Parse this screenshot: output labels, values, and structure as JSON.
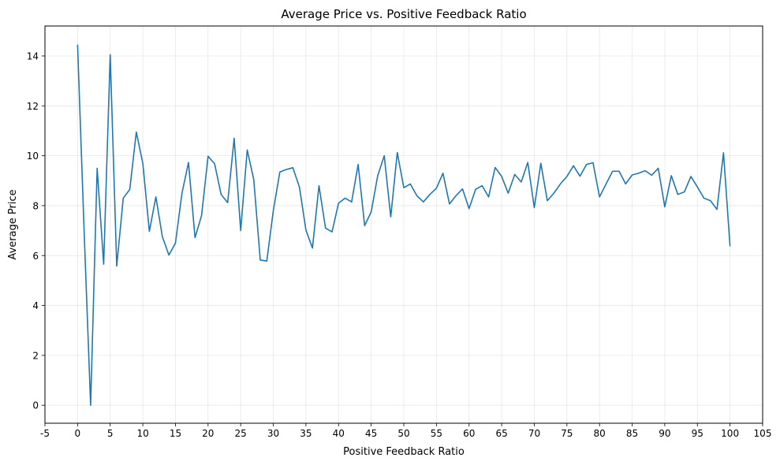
{
  "chart_data": {
    "type": "line",
    "title": "Average Price vs. Positive Feedback Ratio",
    "xlabel": "Positive Feedback Ratio",
    "ylabel": "Average Price",
    "xlim": [
      -5,
      105
    ],
    "ylim": [
      -0.72,
      15.2
    ],
    "x_ticks": [
      -5,
      0,
      5,
      10,
      15,
      20,
      25,
      30,
      35,
      40,
      45,
      50,
      55,
      60,
      65,
      70,
      75,
      80,
      85,
      90,
      95,
      100,
      105
    ],
    "y_ticks": [
      0,
      2,
      4,
      6,
      8,
      10,
      12,
      14
    ],
    "grid": true,
    "line_color": "#1f77b4",
    "series": [
      {
        "x": [
          0,
          1,
          2,
          3,
          4,
          5,
          6,
          7,
          8,
          9,
          10,
          11,
          12,
          13,
          14,
          15,
          16,
          17,
          18,
          19,
          20,
          21,
          22,
          23,
          24,
          25,
          26,
          27,
          28,
          29,
          30,
          31,
          32,
          33,
          34,
          35,
          36,
          37,
          38,
          39,
          40,
          41,
          42,
          43,
          44,
          45,
          46,
          47,
          48,
          49,
          50,
          51,
          52,
          53,
          54,
          55,
          56,
          57,
          58,
          59,
          60,
          61,
          62,
          63,
          64,
          65,
          66,
          67,
          68,
          69,
          70,
          71,
          72,
          73,
          74,
          75,
          76,
          77,
          78,
          79,
          80,
          81,
          82,
          83,
          84,
          85,
          86,
          87,
          88,
          89,
          90,
          91,
          92,
          93,
          94,
          95,
          96,
          97,
          98,
          99,
          100
        ],
        "values": [
          14.45,
          7.0,
          0.0,
          9.5,
          5.65,
          14.05,
          5.58,
          8.3,
          8.65,
          10.95,
          9.7,
          6.97,
          8.35,
          6.75,
          6.02,
          6.5,
          8.5,
          9.73,
          6.72,
          7.6,
          9.98,
          9.68,
          8.45,
          8.12,
          10.7,
          7.0,
          10.23,
          9.05,
          5.82,
          5.78,
          7.8,
          9.35,
          9.45,
          9.52,
          8.75,
          7.02,
          6.3,
          8.8,
          7.1,
          6.95,
          8.1,
          8.3,
          8.15,
          9.65,
          7.2,
          7.75,
          9.2,
          10.0,
          7.55,
          10.13,
          8.72,
          8.87,
          8.4,
          8.15,
          8.45,
          8.7,
          9.3,
          8.07,
          8.4,
          8.67,
          7.88,
          8.65,
          8.8,
          8.35,
          9.53,
          9.17,
          8.5,
          9.25,
          8.95,
          9.73,
          7.92,
          9.7,
          8.2,
          8.5,
          8.87,
          9.17,
          9.6,
          9.18,
          9.65,
          9.72,
          8.35,
          8.87,
          9.38,
          9.38,
          8.87,
          9.23,
          9.3,
          9.4,
          9.22,
          9.5,
          7.95,
          9.2,
          8.45,
          8.55,
          9.17,
          8.75,
          8.3,
          8.2,
          7.85,
          10.12,
          6.37
        ]
      }
    ]
  }
}
